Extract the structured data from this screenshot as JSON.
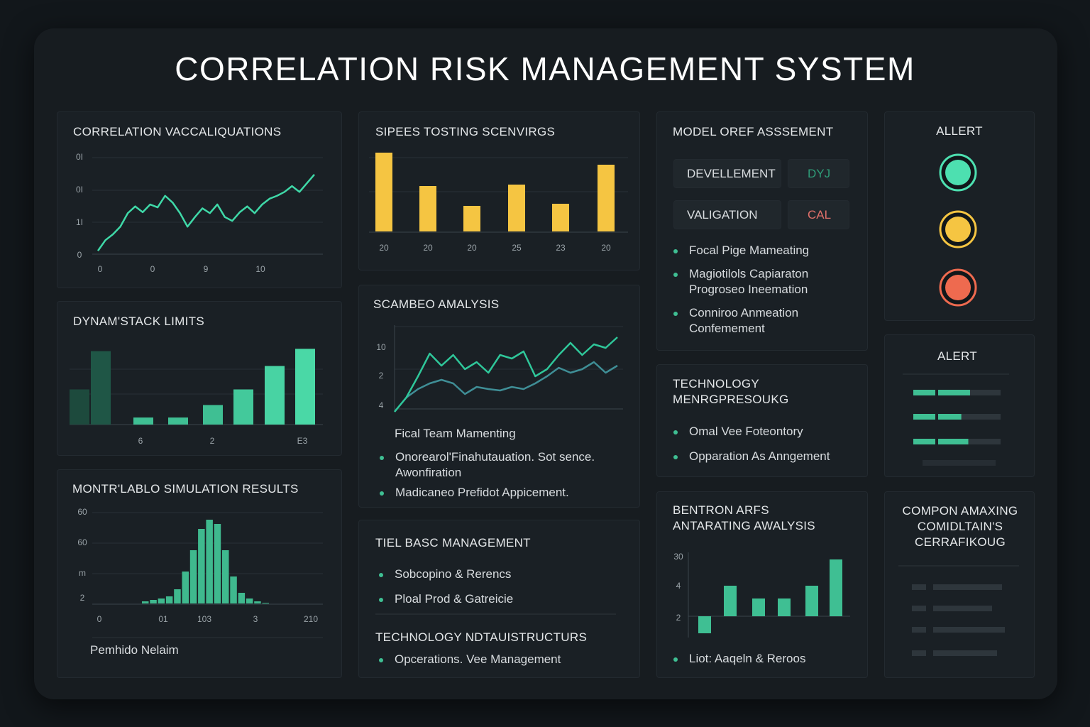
{
  "title": "CORRELATION RISK MANAGEMENT SYSTEM",
  "panels": {
    "correlation": {
      "title": "CORRELATION VACCALIQUATIONS",
      "y_labels": [
        "0I",
        "0I",
        "1I",
        "0"
      ],
      "x_labels": [
        "0",
        "0",
        "9",
        "10"
      ],
      "ylim": [
        0,
        100
      ],
      "color": "#3fd9a8",
      "values": [
        2,
        13,
        19,
        27,
        41,
        48,
        42,
        50,
        47,
        59,
        52,
        41,
        27,
        37,
        46,
        41,
        50,
        37,
        33,
        42,
        48,
        41,
        50,
        56,
        59,
        63,
        69,
        63,
        72,
        81
      ]
    },
    "limits": {
      "title": "DYNAM'STACK LIMITS",
      "x_labels": [
        "6",
        "2",
        "E3"
      ],
      "ylim": [
        0,
        100
      ],
      "values": [
        45,
        94,
        9,
        9,
        25,
        45,
        75,
        97
      ],
      "colors": [
        "#1d4a3d",
        "#1f5646",
        "#3fbf93",
        "#3fbf93",
        "#3fbf93",
        "#43c99b",
        "#48d3a3",
        "#4ad8a6"
      ]
    },
    "monte_carlo": {
      "title": "MONTR'LABLO SIMULATION RESULTS",
      "y_labels": [
        "60",
        "60",
        "m",
        "2"
      ],
      "x_labels": [
        "0",
        "01",
        "103",
        "3",
        "210"
      ],
      "ylim": [
        0,
        130
      ],
      "color": "#3fb98e",
      "values": [
        3,
        5,
        7,
        10,
        20,
        45,
        75,
        105,
        118,
        112,
        75,
        38,
        15,
        7,
        3,
        1
      ],
      "footer": "Pemhido Nelaim"
    },
    "stress": {
      "title": "SIPEES TOSTING SCENVIRGS",
      "x_labels": [
        "20",
        "20",
        "20",
        "25",
        "23",
        "20"
      ],
      "ylim": [
        0,
        120
      ],
      "color": "#f5c542",
      "values": [
        111,
        64,
        36,
        66,
        39,
        94
      ]
    },
    "scenario": {
      "title": "SCAMBEO AMALYSIS",
      "y_labels": [
        "10",
        "2",
        "4"
      ],
      "ylim": [
        0,
        120
      ],
      "series": [
        {
          "color": "#2fc79a",
          "values": [
            0,
            20,
            50,
            82,
            65,
            80,
            60,
            70,
            55,
            80,
            75,
            85,
            50,
            60,
            80,
            97,
            80,
            95,
            90,
            105
          ]
        },
        {
          "color": "#3f8e96",
          "values": [
            0,
            20,
            32,
            40,
            45,
            40,
            25,
            35,
            32,
            30,
            35,
            32,
            40,
            50,
            62,
            55,
            60,
            70,
            55,
            65
          ]
        }
      ],
      "heading": "Fical Team Mamenting",
      "bullets": [
        "Onorearol'Finahutauation. Sot sence. Awonfiration",
        "Madicaneo Prefidot Appicement."
      ]
    },
    "basic": {
      "title": "TIEL BASC MANAGEMENT",
      "bullets": [
        "Sobcopino & Rerencs",
        "Ploal Prod & Gatreicie"
      ],
      "subtitle": "TECHNOLOGY NDTAUISTRUCTURS",
      "sub_bullets": [
        "Opcerations. Vee Management"
      ]
    },
    "model": {
      "title": "MODEL OREF ASSSEMENT",
      "rows": [
        {
          "label": "DEVELLEMENT",
          "status": "DYJ",
          "status_color": "#2f9c78"
        },
        {
          "label": "VALIGATION",
          "status": "CAL",
          "status_color": "#e0706a"
        }
      ],
      "bullets": [
        "Focal Pige Mameating",
        "Magiotilols Capiaraton Progroseo Ineemation",
        "Conniroo Anmeation Confemement"
      ]
    },
    "technology": {
      "title": "TECHNOLOGY MENRGPRESOUKG",
      "bullets": [
        "Omal Vee Foteontory",
        "Opparation As Anngement"
      ]
    },
    "benchmark": {
      "title": "BENTRON ARFS ANTARATING AWALYSIS",
      "y_labels": [
        "30",
        "4",
        "2"
      ],
      "ylim": [
        -30,
        90
      ],
      "color": "#3fbf93",
      "values": [
        -24,
        43,
        25,
        25,
        43,
        80
      ],
      "bullets": [
        "Liot: Aaqeln & Reroos"
      ]
    },
    "alert_lights": {
      "title": "ALLERT",
      "colors": [
        "#4de0b0",
        "#f5c542",
        "#ee6a4f"
      ]
    },
    "alert_bars": {
      "title": "ALERT",
      "max": 100,
      "values": [
        65,
        55,
        63
      ],
      "color": "#3fbf93"
    },
    "compliance": {
      "title": "COMPON AMAXING COMIDLTAIN'S CERRAFIKOUG"
    }
  }
}
